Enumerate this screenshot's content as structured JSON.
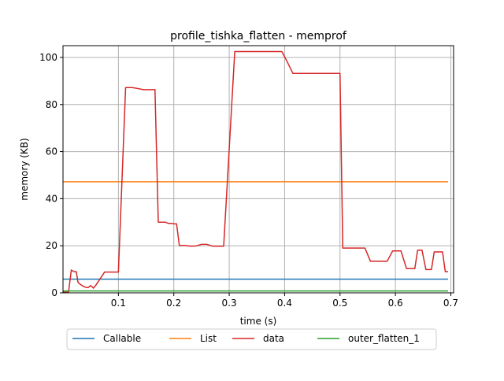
{
  "chart_data": {
    "type": "line",
    "title": "profile_tishka_flatten - memprof",
    "xlabel": "time (s)",
    "ylabel": "memory (KB)",
    "xlim": [
      0.0,
      0.705
    ],
    "ylim": [
      0,
      105
    ],
    "xticks": [
      0.1,
      0.2,
      0.3,
      0.4,
      0.5,
      0.6,
      0.7
    ],
    "xtick_labels": [
      "0.1",
      "0.2",
      "0.3",
      "0.4",
      "0.5",
      "0.6",
      "0.7"
    ],
    "yticks": [
      0,
      20,
      40,
      60,
      80,
      100
    ],
    "ytick_labels": [
      "0",
      "20",
      "40",
      "60",
      "80",
      "100"
    ],
    "grid": true,
    "legend_position": "bottom-center",
    "series": [
      {
        "name": "Callable",
        "color": "#1f77b4",
        "x": [
          0.0,
          0.695
        ],
        "y": [
          5.8,
          5.8
        ]
      },
      {
        "name": "List",
        "color": "#ff7f0e",
        "x": [
          0.0,
          0.695
        ],
        "y": [
          47.2,
          47.2
        ]
      },
      {
        "name": "data",
        "color": "#d62728",
        "x": [
          0.0,
          0.01,
          0.015,
          0.02,
          0.024,
          0.027,
          0.03,
          0.035,
          0.04,
          0.045,
          0.05,
          0.055,
          0.06,
          0.075,
          0.085,
          0.095,
          0.1,
          0.113,
          0.125,
          0.135,
          0.145,
          0.16,
          0.166,
          0.172,
          0.18,
          0.185,
          0.19,
          0.195,
          0.2,
          0.205,
          0.21,
          0.215,
          0.22,
          0.23,
          0.24,
          0.25,
          0.255,
          0.26,
          0.27,
          0.278,
          0.283,
          0.29,
          0.31,
          0.325,
          0.34,
          0.36,
          0.385,
          0.395,
          0.405,
          0.415,
          0.43,
          0.45,
          0.47,
          0.49,
          0.5,
          0.505,
          0.515,
          0.54,
          0.545,
          0.555,
          0.565,
          0.575,
          0.58,
          0.585,
          0.595,
          0.6,
          0.605,
          0.61,
          0.62,
          0.63,
          0.635,
          0.64,
          0.645,
          0.648,
          0.655,
          0.66,
          0.665,
          0.67,
          0.678,
          0.685,
          0.69,
          0.695
        ],
        "y": [
          0.3,
          0.3,
          9.7,
          9.0,
          9.0,
          4.5,
          3.8,
          3.0,
          2.4,
          2.2,
          3.1,
          2.0,
          3.5,
          8.8,
          8.8,
          8.8,
          8.8,
          87.2,
          87.2,
          86.8,
          86.3,
          86.3,
          86.3,
          30.0,
          30.0,
          30.0,
          29.5,
          29.5,
          29.3,
          29.3,
          20.1,
          20.1,
          20.1,
          19.8,
          19.9,
          20.6,
          20.6,
          20.6,
          19.8,
          19.8,
          19.8,
          19.8,
          102.5,
          102.5,
          102.5,
          102.5,
          102.5,
          102.5,
          98.0,
          93.2,
          93.2,
          93.2,
          93.2,
          93.2,
          93.2,
          19.0,
          19.0,
          19.0,
          19.0,
          13.4,
          13.4,
          13.4,
          13.4,
          13.4,
          17.8,
          17.8,
          17.8,
          17.8,
          10.3,
          10.3,
          10.3,
          18.1,
          18.1,
          18.1,
          9.9,
          9.9,
          9.9,
          17.4,
          17.4,
          17.4,
          9.0,
          9.0
        ]
      },
      {
        "name": "outer_flatten_1",
        "color": "#2ca02c",
        "x": [
          0.0,
          0.695
        ],
        "y": [
          0.8,
          0.8
        ]
      }
    ]
  }
}
